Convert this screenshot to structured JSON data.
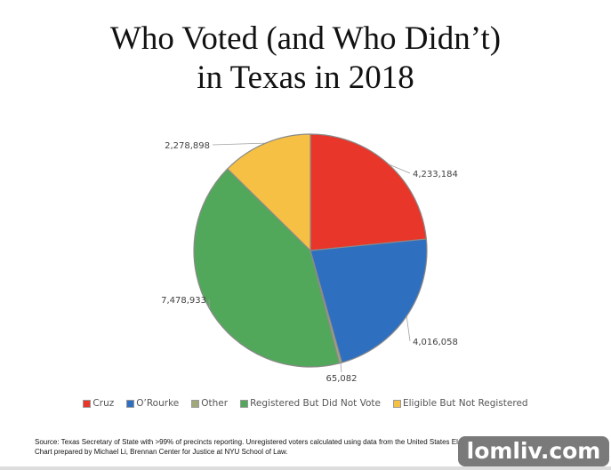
{
  "chart_data": {
    "type": "pie",
    "title_lines": [
      "Who Voted (and Who Didn’t)",
      "in Texas in 2018"
    ],
    "start": "top",
    "direction": "clockwise",
    "slices": [
      {
        "name": "Cruz",
        "value": 4233184,
        "label": "4,233,184",
        "color": "#e8362a"
      },
      {
        "name": "O’Rourke",
        "value": 4016058,
        "label": "4,016,058",
        "color": "#2f6fbf"
      },
      {
        "name": "Other",
        "value": 65082,
        "label": "65,082",
        "color": "#a0a87a"
      },
      {
        "name": "Registered But Did Not Vote",
        "value": 7478933,
        "label": "7,478,933",
        "color": "#52a85a"
      },
      {
        "name": "Eligible But Not Registered",
        "value": 2278898,
        "label": "2,278,898",
        "color": "#f5c043"
      }
    ],
    "legend_placement": "bottom"
  },
  "source": {
    "line1": "Source: Texas Secretary of State with >99% of precincts reporting. Unregistered voters calculated using data from the United States Elections Project.",
    "line2": "Chart prepared by Michael Li, Brennan Center for Justice at NYU School of Law."
  },
  "watermark": "lomliv.com"
}
